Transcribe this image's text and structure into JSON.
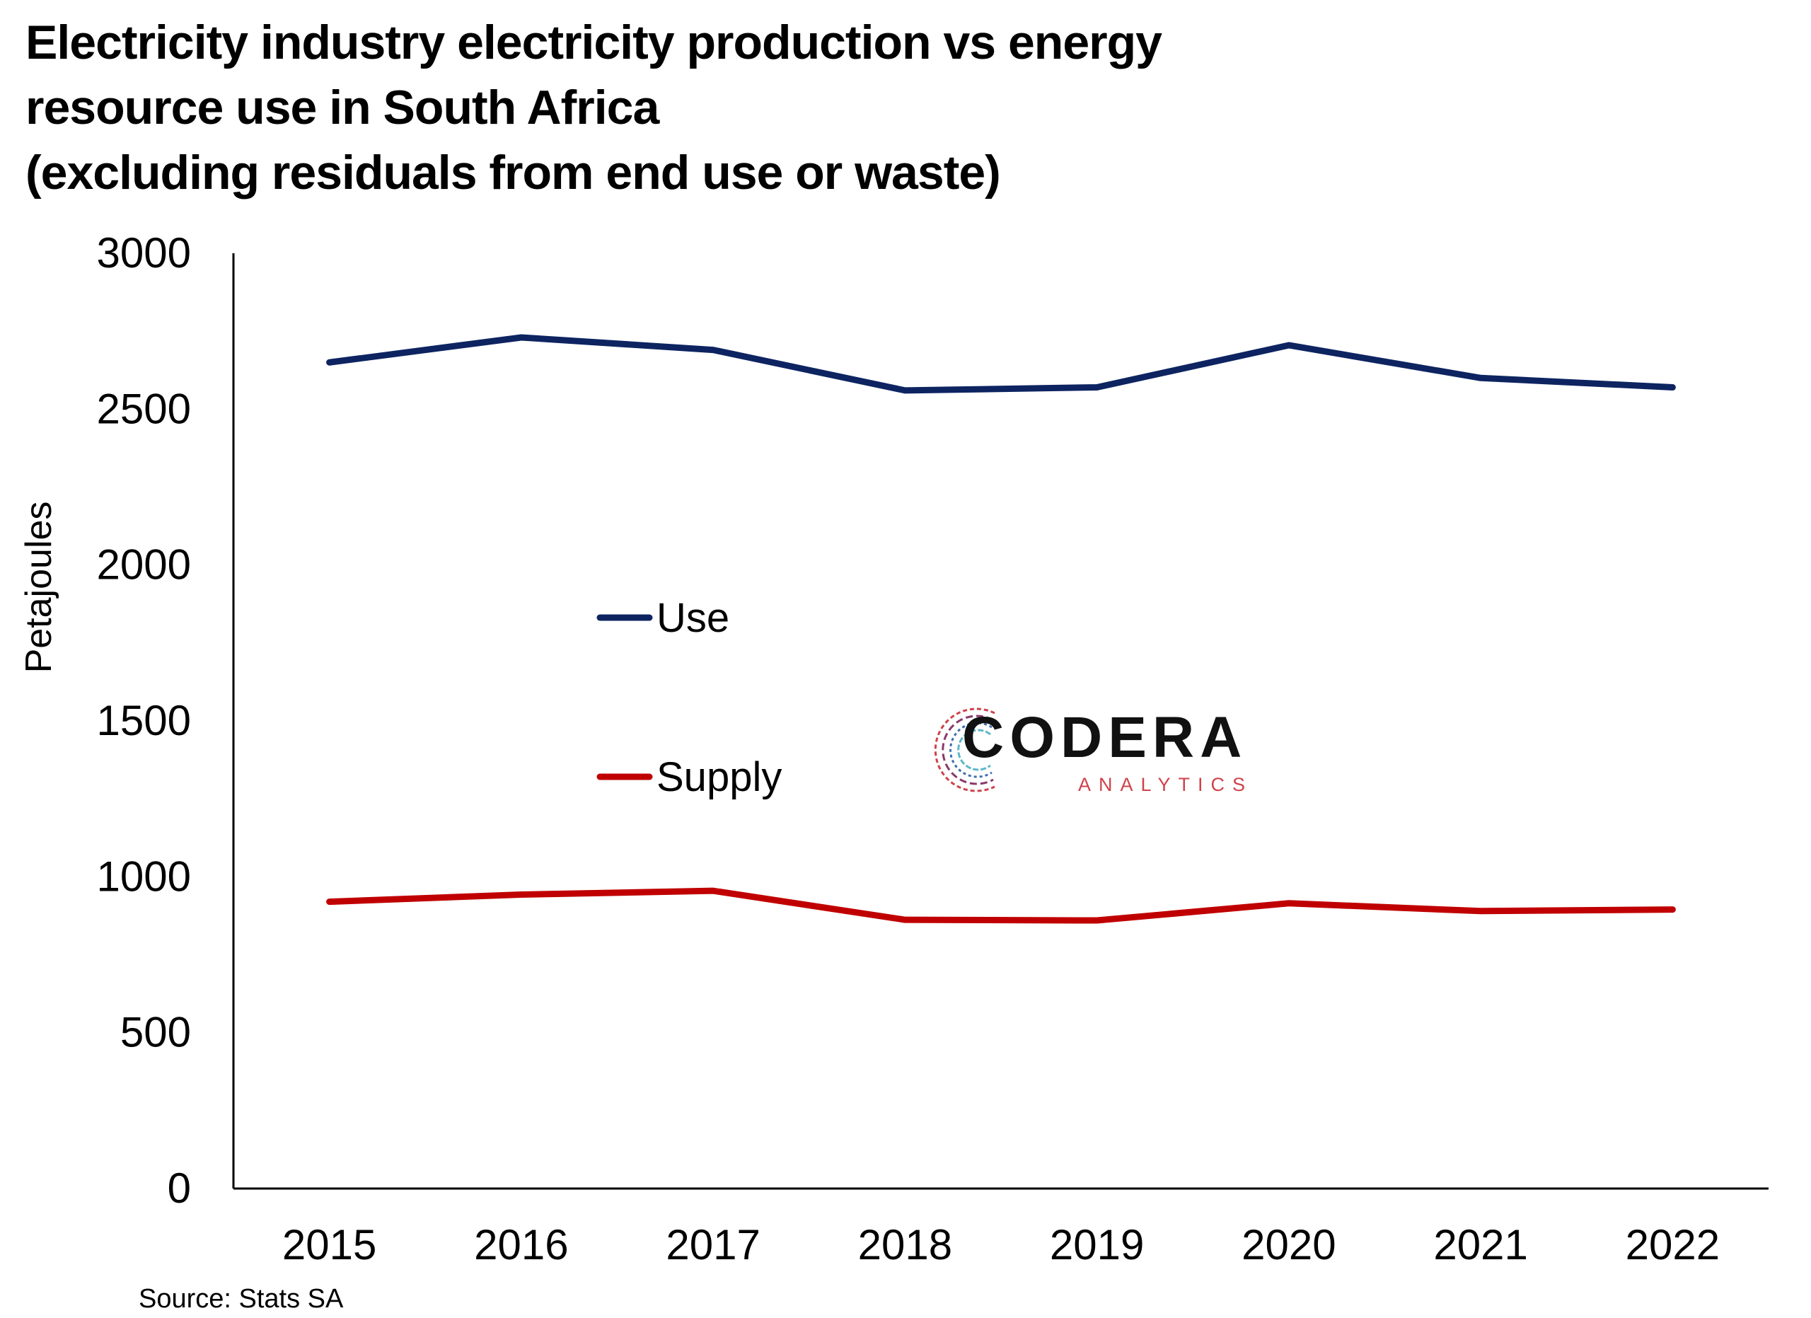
{
  "title_lines": [
    "Electricity industry electricity production vs energy",
    "resource use in South Africa",
    "(excluding residuals from end use or waste)"
  ],
  "source": "Source: Stats SA",
  "logo": {
    "word": "CODERA",
    "sub": "ANALYTICS"
  },
  "colors": {
    "use": "#0d2461",
    "supply": "#c00000",
    "axis": "#000000"
  },
  "chart_data": {
    "type": "line",
    "title": "Electricity industry electricity production vs energy resource use in South Africa (excluding residuals from end use or waste)",
    "xlabel": "",
    "ylabel": "Petajoules",
    "ylim": [
      0,
      3000
    ],
    "yticks": [
      0,
      500,
      1000,
      1500,
      2000,
      2500,
      3000
    ],
    "x": [
      "2015",
      "2016",
      "2017",
      "2018",
      "2019",
      "2020",
      "2021",
      "2022"
    ],
    "series": [
      {
        "name": "Use",
        "values": [
          2650,
          2730,
          2690,
          2560,
          2570,
          2705,
          2600,
          2570
        ]
      },
      {
        "name": "Supply",
        "values": [
          920,
          943,
          955,
          862,
          860,
          915,
          890,
          895
        ]
      }
    ],
    "legend_position": "center-left, inside plot",
    "grid": false
  }
}
